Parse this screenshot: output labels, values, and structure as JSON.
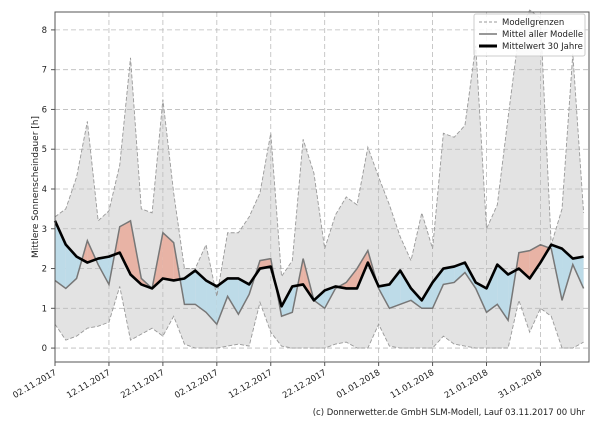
{
  "chart_data": {
    "type": "area",
    "title": "",
    "xlabel": "",
    "ylabel": "Mittlere Sonnenscheindauer [h]",
    "xlim": [
      "2017-11-02",
      "2018-02-09"
    ],
    "ylim": [
      -0.35,
      8.45
    ],
    "yticks": [
      0,
      1,
      2,
      3,
      4,
      5,
      6,
      7,
      8
    ],
    "xticks": [
      {
        "date": "2017-11-02",
        "label": "02.11.2017"
      },
      {
        "date": "2017-11-12",
        "label": "12.11.2017"
      },
      {
        "date": "2017-11-22",
        "label": "22.11.2017"
      },
      {
        "date": "2017-12-02",
        "label": "02.12.2017"
      },
      {
        "date": "2017-12-12",
        "label": "12.12.2017"
      },
      {
        "date": "2017-12-22",
        "label": "22.12.2017"
      },
      {
        "date": "2018-01-01",
        "label": "01.01.2018"
      },
      {
        "date": "2018-01-11",
        "label": "11.01.2018"
      },
      {
        "date": "2018-01-21",
        "label": "21.01.2018"
      },
      {
        "date": "2018-01-31",
        "label": "31.01.2018"
      }
    ],
    "grid": true,
    "legend_position": "top-right",
    "x": [
      "2017-11-02",
      "2017-11-04",
      "2017-11-06",
      "2017-11-08",
      "2017-11-10",
      "2017-11-12",
      "2017-11-14",
      "2017-11-16",
      "2017-11-18",
      "2017-11-20",
      "2017-11-22",
      "2017-11-24",
      "2017-11-26",
      "2017-11-28",
      "2017-11-30",
      "2017-12-02",
      "2017-12-04",
      "2017-12-06",
      "2017-12-08",
      "2017-12-10",
      "2017-12-12",
      "2017-12-14",
      "2017-12-16",
      "2017-12-18",
      "2017-12-20",
      "2017-12-22",
      "2017-12-24",
      "2017-12-26",
      "2017-12-28",
      "2017-12-30",
      "2018-01-01",
      "2018-01-03",
      "2018-01-05",
      "2018-01-07",
      "2018-01-09",
      "2018-01-11",
      "2018-01-13",
      "2018-01-15",
      "2018-01-17",
      "2018-01-19",
      "2018-01-21",
      "2018-01-23",
      "2018-01-25",
      "2018-01-27",
      "2018-01-29",
      "2018-01-31",
      "2018-02-02",
      "2018-02-04",
      "2018-02-06",
      "2018-02-08"
    ],
    "series": [
      {
        "name": "Modellgrenzen",
        "role": "upper",
        "color": "#999999",
        "values": [
          3.3,
          3.5,
          4.3,
          5.7,
          3.2,
          3.45,
          4.6,
          7.3,
          3.5,
          3.4,
          6.25,
          3.9,
          2.0,
          2.0,
          2.6,
          1.3,
          2.9,
          2.9,
          3.3,
          3.9,
          5.4,
          1.8,
          2.2,
          5.25,
          4.4,
          2.5,
          3.35,
          3.8,
          3.6,
          5.05,
          4.3,
          3.6,
          2.8,
          2.2,
          3.4,
          2.5,
          5.4,
          5.3,
          5.6,
          7.6,
          3.0,
          3.6,
          5.8,
          7.9,
          8.5,
          8.3,
          2.6,
          3.5,
          7.4,
          3.4
        ]
      },
      {
        "name": "Modellgrenzen",
        "role": "lower",
        "color": "#999999",
        "values": [
          0.6,
          0.2,
          0.3,
          0.5,
          0.55,
          0.65,
          1.55,
          0.2,
          0.35,
          0.5,
          0.3,
          0.8,
          0.1,
          0.0,
          0.0,
          0.0,
          0.05,
          0.1,
          0.05,
          1.15,
          0.4,
          0.05,
          0.0,
          0.0,
          0.0,
          0.0,
          0.1,
          0.15,
          0.0,
          0.0,
          0.6,
          0.05,
          0.0,
          0.0,
          0.0,
          0.0,
          0.3,
          0.1,
          0.05,
          0.0,
          0.0,
          0.0,
          0.0,
          1.2,
          0.4,
          1.0,
          0.8,
          0.0,
          0.0,
          0.15
        ]
      },
      {
        "name": "Mittel aller Modelle",
        "role": "model_mean",
        "color": "#777777",
        "values": [
          1.7,
          1.5,
          1.75,
          2.7,
          2.1,
          1.6,
          3.05,
          3.2,
          1.75,
          1.5,
          2.9,
          2.65,
          1.1,
          1.1,
          0.9,
          0.6,
          1.3,
          0.85,
          1.35,
          2.2,
          2.25,
          0.8,
          0.9,
          2.25,
          1.2,
          1.0,
          1.5,
          1.65,
          2.0,
          2.45,
          1.5,
          1.0,
          1.1,
          1.2,
          1.0,
          1.0,
          1.6,
          1.65,
          1.9,
          1.5,
          0.9,
          1.1,
          0.7,
          2.4,
          2.45,
          2.6,
          2.5,
          1.2,
          2.1,
          1.5
        ]
      },
      {
        "name": "Mittelwert 30 Jahre",
        "role": "climate_mean",
        "color": "#000000",
        "values": [
          3.2,
          2.6,
          2.3,
          2.15,
          2.25,
          2.3,
          2.4,
          1.85,
          1.6,
          1.5,
          1.75,
          1.7,
          1.75,
          1.95,
          1.7,
          1.55,
          1.75,
          1.75,
          1.6,
          2.0,
          2.05,
          1.05,
          1.55,
          1.6,
          1.2,
          1.45,
          1.55,
          1.5,
          1.5,
          2.15,
          1.55,
          1.6,
          1.95,
          1.5,
          1.2,
          1.65,
          2.0,
          2.05,
          2.15,
          1.65,
          1.5,
          2.1,
          1.85,
          2.0,
          1.75,
          2.15,
          2.6,
          2.5,
          2.25,
          2.3
        ]
      }
    ],
    "colors": {
      "band": "#e3e3e3",
      "above": "#e8b3a5",
      "below": "#bddbe8"
    },
    "legend": [
      "Modellgrenzen",
      "Mittel aller Modelle",
      "Mittelwert 30 Jahre"
    ]
  },
  "footer": "(c) Donnerwetter.de GmbH SLM-Modell, Lauf 03.11.2017 00 Uhr"
}
